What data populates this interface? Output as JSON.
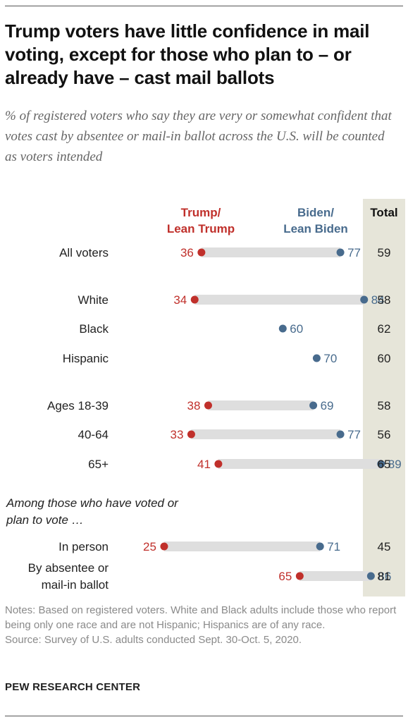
{
  "title": "Trump voters have little confidence in mail voting, except for those who plan to – or already have – cast mail ballots",
  "subtitle": "% of registered voters who say they are very or somewhat confident that votes cast by absentee or mail-in ballot across the U.S. will be counted as voters intended",
  "group_note": "Among those who have voted or plan to vote …",
  "notes": "Notes: Based on registered voters. White and Black adults include those who report being only one race and are not Hispanic; Hispanics are of any race.",
  "source": "Source: Survey of U.S. adults conducted Sept. 30-Oct. 5, 2020.",
  "branding": "PEW RESEARCH CENTER",
  "colors": {
    "trump": "#c0302b",
    "biden": "#486b8d",
    "bar": "#dedede",
    "total_band": "#e6e5d9"
  },
  "chart_data": {
    "type": "dot",
    "title": "Trump voters have little confidence in mail voting, except for those who plan to – or already have – cast mail ballots",
    "series": [
      {
        "name": "Trump/ Lean Trump",
        "color": "#c0302b"
      },
      {
        "name": "Biden/ Lean Biden",
        "color": "#486b8d"
      }
    ],
    "total_label": "Total",
    "rows": [
      {
        "label": "All voters",
        "trump": 36,
        "biden": 77,
        "total": 59
      },
      {
        "label": "White",
        "trump": 34,
        "biden": 84,
        "total": 58
      },
      {
        "label": "Black",
        "trump": null,
        "biden": 60,
        "total": 62
      },
      {
        "label": "Hispanic",
        "trump": null,
        "biden": 70,
        "total": 60
      },
      {
        "label": "Ages 18-39",
        "trump": 38,
        "biden": 69,
        "total": 58
      },
      {
        "label": "40-64",
        "trump": 33,
        "biden": 77,
        "total": 56
      },
      {
        "label": "65+",
        "trump": 41,
        "biden": 89,
        "total": 65
      },
      {
        "label": "In person",
        "trump": 25,
        "biden": 71,
        "total": 45
      },
      {
        "label": "By absentee or mail-in ballot",
        "trump": 65,
        "biden": 86,
        "total": 81
      }
    ]
  }
}
